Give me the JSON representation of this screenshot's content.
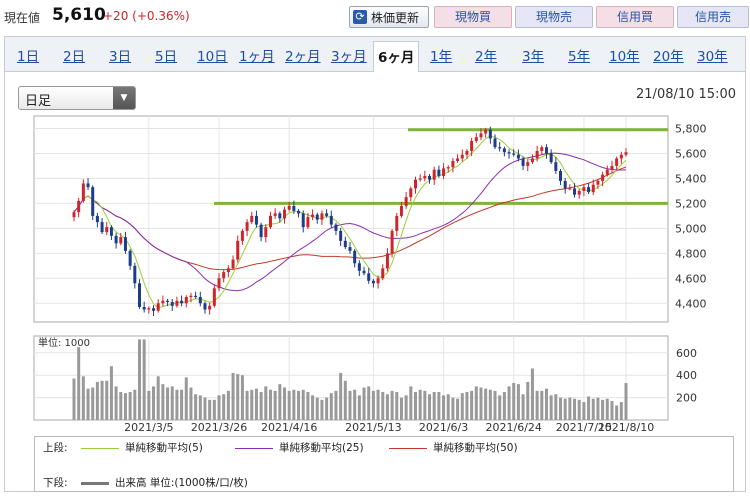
{
  "header": {
    "price_label": "現在値",
    "price_value": "5,610",
    "price_change": "+20 (+0.36%)",
    "refresh_label": "株価更新",
    "refresh_icon": "refresh-icon",
    "buttons": [
      "現物買",
      "現物売",
      "信用買",
      "信用売"
    ]
  },
  "tabs": [
    {
      "label": "1日"
    },
    {
      "label": "2日"
    },
    {
      "label": "3日"
    },
    {
      "label": "5日"
    },
    {
      "label": "10日"
    },
    {
      "label": "1ヶ月"
    },
    {
      "label": "2ヶ月"
    },
    {
      "label": "3ヶ月"
    },
    {
      "label": "6ヶ月",
      "active": true
    },
    {
      "label": "1年"
    },
    {
      "label": "2年"
    },
    {
      "label": "3年"
    },
    {
      "label": "5年"
    },
    {
      "label": "10年"
    },
    {
      "label": "20年"
    },
    {
      "label": "30年"
    }
  ],
  "chart_header": {
    "interval_select": "日足",
    "datetime": "21/08/10 15:00"
  },
  "colors": {
    "up": "#d0242b",
    "down": "#1e3c8c",
    "sma5": "#9ccf3a",
    "sma25": "#8a2fb0",
    "sma50": "#c0392b",
    "trendline": "#7fb33a",
    "volume": "#999999"
  },
  "chart_data": {
    "type": "candlestick",
    "x_ticks": [
      "2021/3/5",
      "2021/3/26",
      "2021/4/16",
      "2021/5/13",
      "2021/6/3",
      "2021/6/24",
      "2021/7/15",
      "2021/8/10"
    ],
    "y_ticks": [
      "5,800",
      "5,600",
      "5,400",
      "5,200",
      "5,000",
      "4,800",
      "4,600",
      "4,400"
    ],
    "ylim": [
      4250,
      5900
    ],
    "volume_label": "単位: 1000",
    "volume_ticks": [
      "600",
      "400",
      "200"
    ],
    "volume_ylim": [
      0,
      750
    ],
    "trendlines": [
      5790,
      5200
    ],
    "closes": [
      5130,
      5220,
      5360,
      5330,
      5100,
      5050,
      4970,
      5010,
      4940,
      4880,
      4930,
      4820,
      4700,
      4560,
      4370,
      4350,
      4360,
      4340,
      4400,
      4420,
      4410,
      4380,
      4420,
      4400,
      4450,
      4460,
      4450,
      4400,
      4350,
      4380,
      4520,
      4600,
      4650,
      4680,
      4750,
      4900,
      4980,
      5050,
      5100,
      5030,
      4930,
      5010,
      5100,
      5120,
      5080,
      5150,
      5180,
      5140,
      5120,
      5010,
      5090,
      5110,
      5070,
      5120,
      5100,
      5030,
      4980,
      4900,
      4850,
      4820,
      4720,
      4660,
      4640,
      4580,
      4560,
      4600,
      4680,
      4800,
      4980,
      5100,
      5180,
      5250,
      5320,
      5390,
      5400,
      5420,
      5390,
      5470,
      5420,
      5480,
      5490,
      5540,
      5560,
      5590,
      5620,
      5700,
      5730,
      5760,
      5790,
      5720,
      5650,
      5640,
      5610,
      5600,
      5590,
      5560,
      5500,
      5530,
      5560,
      5620,
      5650,
      5600,
      5530,
      5460,
      5380,
      5320,
      5320,
      5270,
      5300,
      5330,
      5290,
      5350,
      5380,
      5430,
      5470,
      5500,
      5560,
      5590,
      5610
    ],
    "volumes": [
      370,
      650,
      390,
      280,
      290,
      340,
      350,
      350,
      480,
      300,
      250,
      240,
      250,
      270,
      720,
      720,
      260,
      300,
      390,
      320,
      290,
      300,
      270,
      270,
      380,
      290,
      230,
      220,
      200,
      180,
      180,
      220,
      230,
      260,
      420,
      410,
      400,
      260,
      270,
      280,
      250,
      300,
      270,
      260,
      320,
      290,
      260,
      270,
      260,
      270,
      250,
      220,
      200,
      180,
      200,
      240,
      260,
      420,
      350,
      260,
      270,
      220,
      290,
      300,
      260,
      270,
      250,
      230,
      260,
      250,
      200,
      220,
      300,
      250,
      270,
      260,
      230,
      250,
      250,
      220,
      230,
      200,
      190,
      240,
      250,
      260,
      300,
      290,
      280,
      270,
      260,
      220,
      250,
      300,
      330,
      320,
      230,
      340,
      460,
      260,
      260,
      280,
      220,
      230,
      200,
      190,
      200,
      190,
      180,
      160,
      210,
      190,
      200,
      180,
      190,
      170,
      130,
      160,
      330
    ],
    "sma_series": [
      {
        "name": "単純移動平均(5)"
      },
      {
        "name": "単純移動平均(25)"
      },
      {
        "name": "単純移動平均(50)"
      }
    ]
  },
  "legend": {
    "upper_label": "上段:",
    "lower_label": "下段:",
    "items": [
      {
        "name": "単純移動平均(5)"
      },
      {
        "name": "単純移動平均(25)"
      },
      {
        "name": "単純移動平均(50)"
      }
    ],
    "volume_item": "出来高 単位:(1000株/口/枚)"
  }
}
